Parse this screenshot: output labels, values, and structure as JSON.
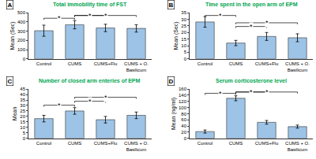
{
  "chart_data": [
    {
      "type": "bar",
      "panel": "A",
      "title": "Total immobility time of FST",
      "y_label": "Mean (Sec)",
      "categories": [
        "Control",
        "CUMS",
        "CUMS+Flu",
        "CUMS + O. Basilicum"
      ],
      "values": [
        305,
        370,
        335,
        330
      ],
      "errors": [
        60,
        45,
        40,
        40
      ],
      "color": "#9dc3e6",
      "ylim": [
        0,
        500
      ],
      "yticks": [
        0,
        100,
        200,
        300,
        400,
        500
      ],
      "grid": false,
      "annotations": [
        {
          "text": "*",
          "from": "Control",
          "to": "CUMS"
        },
        {
          "text": "*",
          "from": "CUMS",
          "to": "CUMS+Flu"
        },
        {
          "text": "*",
          "from": "CUMS",
          "to": "CUMS + O. Basilicum"
        }
      ]
    },
    {
      "type": "bar",
      "panel": "B",
      "title": "Time spent in the open arm of EPM",
      "y_label": "Mean (Sec)",
      "categories": [
        "Control",
        "CUMS",
        "CUMS+Flu",
        "CUMS + O. Basilicum"
      ],
      "values": [
        28,
        12,
        17,
        16
      ],
      "errors": [
        4,
        2,
        3,
        3
      ],
      "color": "#9dc3e6",
      "ylim": [
        0,
        35
      ],
      "yticks": [
        0,
        5,
        10,
        15,
        20,
        25,
        30,
        35
      ],
      "grid": false,
      "annotations": [
        {
          "text": "*",
          "from": "Control",
          "to": "CUMS"
        },
        {
          "text": "*",
          "from": "CUMS",
          "to": "CUMS+Flu"
        },
        {
          "text": "*",
          "from": "CUMS",
          "to": "CUMS + O. Basilicum"
        }
      ]
    },
    {
      "type": "bar",
      "panel": "C",
      "title": "Number of closed arm enteries of EPM",
      "y_label": "Mean",
      "categories": [
        "Control",
        "CUMS",
        "CUMS+Flu",
        "CUMS + O. Basilicum"
      ],
      "values": [
        18,
        25,
        17,
        21
      ],
      "errors": [
        3,
        3,
        3,
        3
      ],
      "color": "#9dc3e6",
      "ylim": [
        0,
        45
      ],
      "yticks": [
        0,
        5,
        10,
        15,
        20,
        25,
        30,
        35,
        40,
        45
      ],
      "grid": false,
      "annotations": [
        {
          "text": "*",
          "from": "Control",
          "to": "CUMS"
        },
        {
          "text": "*",
          "from": "CUMS",
          "to": "CUMS+Flu"
        },
        {
          "text": "*",
          "from": "CUMS",
          "to": "CUMS + O. Basilicum"
        }
      ]
    },
    {
      "type": "bar",
      "panel": "D",
      "title": "Serum corticosterone level",
      "y_label": "Mean (ng/ml)",
      "categories": [
        "Control",
        "CUMS",
        "CUMS+Flu",
        "CUMS + O. Basilicum"
      ],
      "values": [
        22,
        130,
        52,
        38
      ],
      "errors": [
        5,
        8,
        6,
        5
      ],
      "color": "#9dc3e6",
      "ylim": [
        0,
        160
      ],
      "yticks": [
        0,
        20,
        40,
        60,
        80,
        100,
        120,
        140,
        160
      ],
      "grid": false,
      "annotations": [
        {
          "text": "*",
          "from": "Control",
          "to": "CUMS"
        },
        {
          "text": "*",
          "from": "CUMS",
          "to": "CUMS+Flu"
        },
        {
          "text": "*",
          "from": "CUMS",
          "to": "CUMS + O. Basilicum"
        }
      ]
    }
  ]
}
